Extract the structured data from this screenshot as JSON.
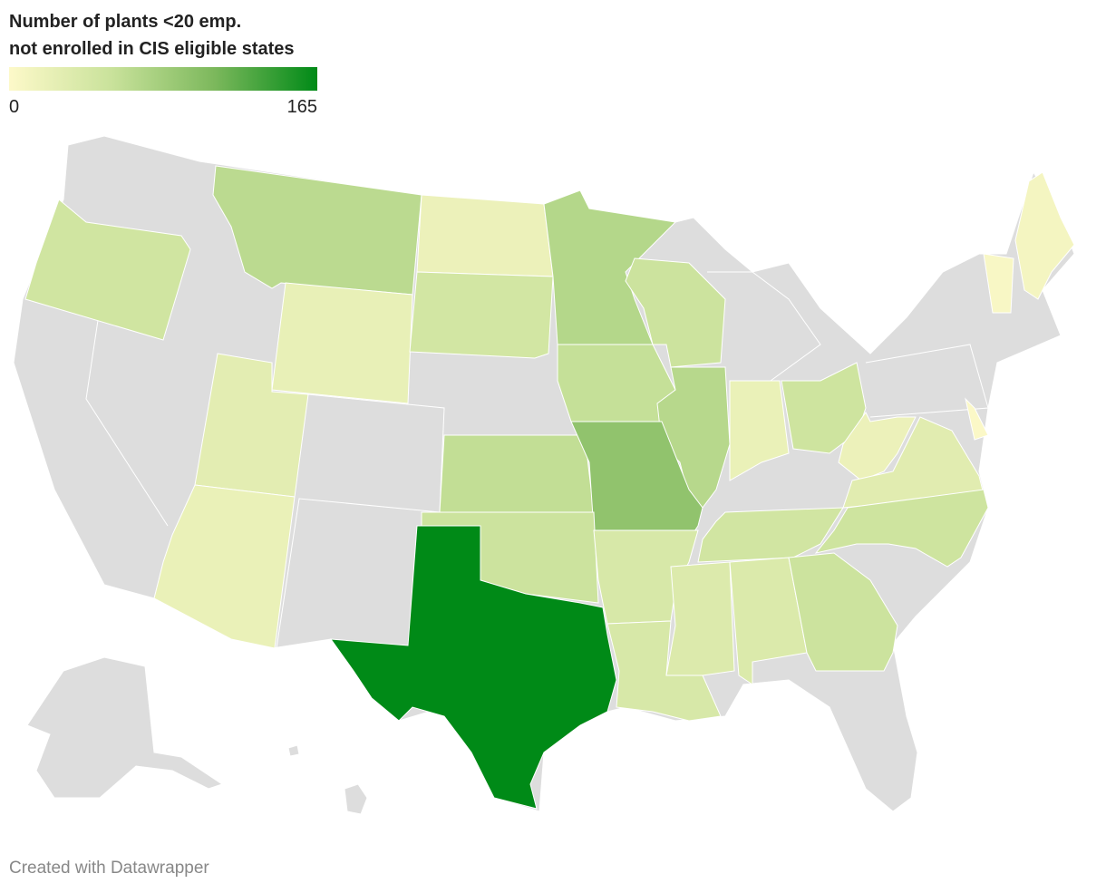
{
  "chart_data": {
    "type": "choropleth",
    "title": "Number of plants <20 emp. not enrolled in CIS eligible states",
    "legend_ticks": [
      0,
      165
    ],
    "color_scale": [
      "#fdf9c9",
      "#c9e29b",
      "#7cb85c",
      "#008a17"
    ],
    "no_data_color": "#dddddd",
    "values": [
      48,
      65,
      22,
      18,
      45,
      70,
      52,
      58,
      68,
      20,
      50,
      18,
      30,
      50,
      47,
      60,
      95,
      52,
      165,
      40,
      40,
      35,
      36,
      52,
      28,
      20,
      10,
      5,
      2
    ],
    "footer": "Created with Datawrapper"
  }
}
